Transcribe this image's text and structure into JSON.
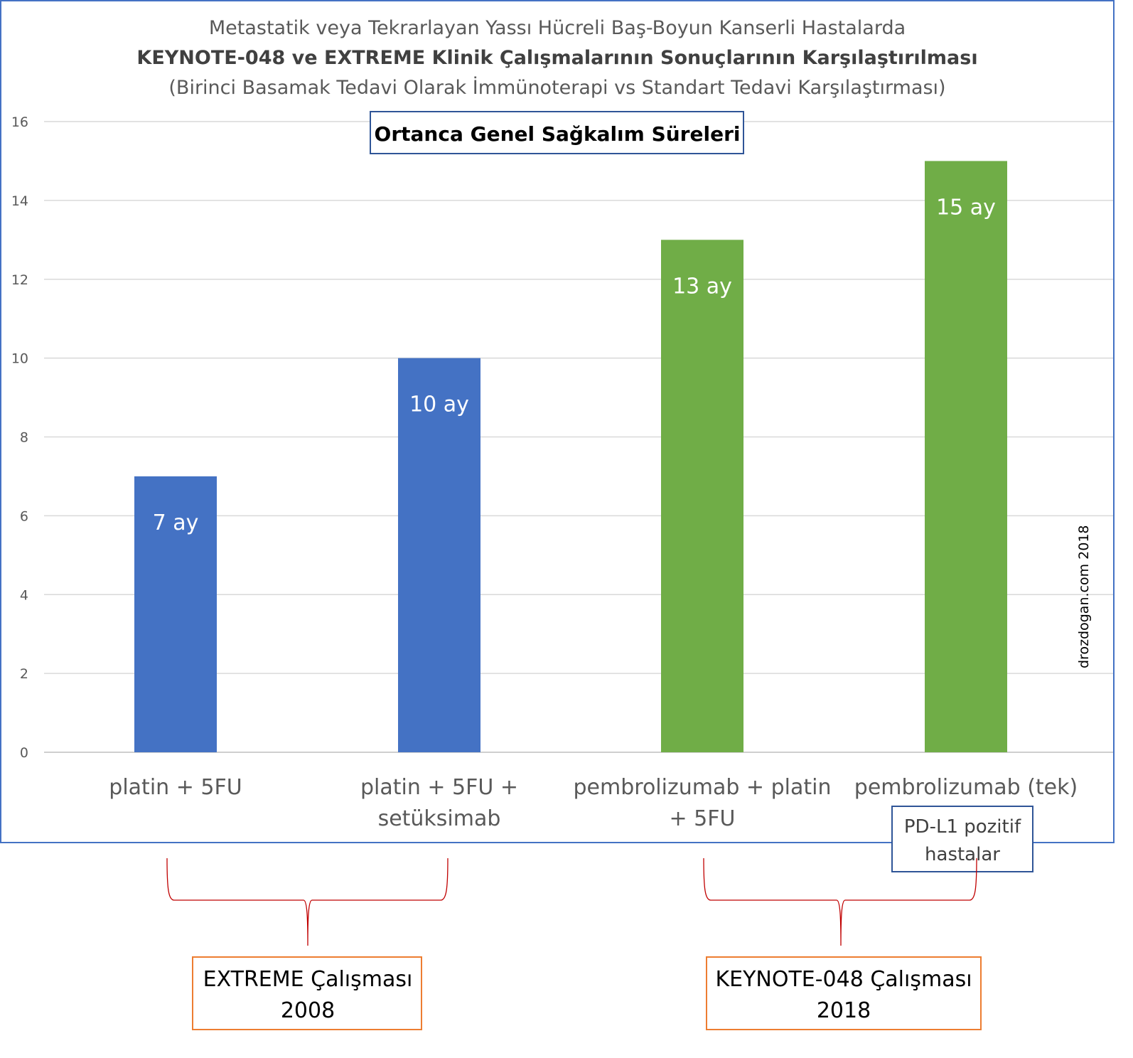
{
  "chart_data": {
    "type": "bar",
    "title_lines": [
      "Metastatik veya Tekrarlayan Yassı Hücreli Baş-Boyun Kanserli Hastalarda",
      "KEYNOTE-048 ve EXTREME Klinik Çalışmalarının Sonuçlarının Karşılaştırılması",
      "(Birinci Basamak Tedavi Olarak İmmünoterapi vs Standart Tedavi Karşılaştırması)"
    ],
    "subtitle_box": "Ortanca Genel Sağkalım Süreleri",
    "categories": [
      [
        "platin + 5FU"
      ],
      [
        "platin + 5FU +",
        "setüksimab"
      ],
      [
        "pembrolizumab + platin",
        "+ 5FU"
      ],
      [
        "pembrolizumab (tek)"
      ]
    ],
    "values": [
      7,
      10,
      13,
      15
    ],
    "data_labels": [
      "7 ay",
      "10 ay",
      "13 ay",
      "15 ay"
    ],
    "bar_colors": [
      "#4472c4",
      "#4472c4",
      "#70ad47",
      "#70ad47"
    ],
    "ylim": [
      0,
      16
    ],
    "yticks": [
      0,
      2,
      4,
      6,
      8,
      10,
      12,
      14,
      16
    ],
    "grid": true,
    "xlabel": "",
    "ylabel": "",
    "watermark": "drozdogan.com 2018",
    "annotations": {
      "pdl1_note": [
        "PD-L1 pozitif",
        "hastalar"
      ],
      "group1": [
        "EXTREME Çalışması",
        "2008"
      ],
      "group2": [
        "KEYNOTE-048 Çalışması",
        "2018"
      ]
    }
  }
}
